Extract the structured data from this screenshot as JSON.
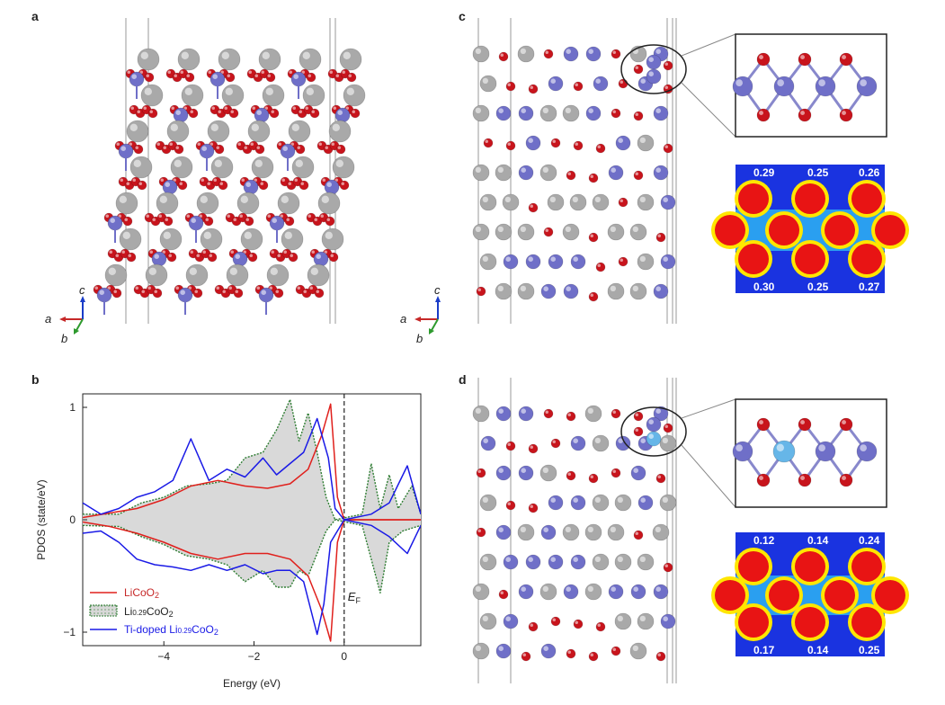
{
  "panels": {
    "a": "a",
    "b": "b",
    "c": "c",
    "d": "d"
  },
  "axes_labels": {
    "a": "a",
    "b": "b",
    "c": "c"
  },
  "colors": {
    "co_atom": "#6f6fc8",
    "o_atom": "#c8141c",
    "li_atom": "#a9a9a9",
    "ti_atom": "#66b6e8",
    "licoo2": "#e0201c",
    "li029": "#2e7d32",
    "tidoped": "#1a1ae6"
  },
  "chart_data": {
    "type": "line",
    "xlabel": "Energy (eV)",
    "ylabel": "PDOS (state/eV)",
    "xlim": [
      -5.8,
      1.7
    ],
    "ylim": [
      -1.12,
      1.12
    ],
    "xticks": [
      -4,
      -2,
      0
    ],
    "yticks": [
      -1,
      0,
      1
    ],
    "fermi_label": "E",
    "fermi_sub": "F",
    "series": [
      {
        "name": "LiCoO",
        "sub": "2",
        "style": "red-line",
        "up": [
          [
            -5.8,
            0.02
          ],
          [
            -5.2,
            0.06
          ],
          [
            -4.6,
            0.1
          ],
          [
            -4.0,
            0.18
          ],
          [
            -3.4,
            0.3
          ],
          [
            -2.8,
            0.35
          ],
          [
            -2.2,
            0.3
          ],
          [
            -1.7,
            0.28
          ],
          [
            -1.2,
            0.32
          ],
          [
            -0.8,
            0.45
          ],
          [
            -0.5,
            0.75
          ],
          [
            -0.3,
            1.03
          ],
          [
            -0.15,
            0.2
          ],
          [
            0,
            0
          ],
          [
            1.7,
            0
          ]
        ],
        "down": [
          [
            -5.8,
            -0.02
          ],
          [
            -5.2,
            -0.06
          ],
          [
            -4.6,
            -0.12
          ],
          [
            -4.0,
            -0.2
          ],
          [
            -3.4,
            -0.3
          ],
          [
            -2.8,
            -0.35
          ],
          [
            -2.2,
            -0.3
          ],
          [
            -1.7,
            -0.3
          ],
          [
            -1.2,
            -0.35
          ],
          [
            -0.8,
            -0.5
          ],
          [
            -0.5,
            -0.8
          ],
          [
            -0.3,
            -1.08
          ],
          [
            -0.15,
            -0.2
          ],
          [
            0,
            0
          ],
          [
            1.7,
            0
          ]
        ]
      },
      {
        "name": "Li",
        "mid": "0.29",
        "tail": "CoO",
        "sub": "2",
        "style": "green-dotted-filled",
        "up": [
          [
            -5.8,
            0.05
          ],
          [
            -5.0,
            0.05
          ],
          [
            -4.5,
            0.15
          ],
          [
            -4.0,
            0.2
          ],
          [
            -3.5,
            0.3
          ],
          [
            -3.0,
            0.32
          ],
          [
            -2.6,
            0.35
          ],
          [
            -2.2,
            0.55
          ],
          [
            -1.8,
            0.6
          ],
          [
            -1.5,
            0.8
          ],
          [
            -1.2,
            1.07
          ],
          [
            -1.0,
            0.7
          ],
          [
            -0.8,
            0.95
          ],
          [
            -0.6,
            0.6
          ],
          [
            -0.4,
            0.2
          ],
          [
            -0.2,
            0
          ],
          [
            0.4,
            0.05
          ],
          [
            0.6,
            0.5
          ],
          [
            0.8,
            0.1
          ],
          [
            1.0,
            0.4
          ],
          [
            1.2,
            0.1
          ],
          [
            1.5,
            0.3
          ],
          [
            1.7,
            0.05
          ]
        ],
        "down": [
          [
            -5.8,
            -0.05
          ],
          [
            -5.0,
            -0.06
          ],
          [
            -4.5,
            -0.15
          ],
          [
            -4.0,
            -0.22
          ],
          [
            -3.5,
            -0.32
          ],
          [
            -3.0,
            -0.35
          ],
          [
            -2.6,
            -0.4
          ],
          [
            -2.2,
            -0.55
          ],
          [
            -1.8,
            -0.45
          ],
          [
            -1.5,
            -0.6
          ],
          [
            -1.2,
            -0.6
          ],
          [
            -1.0,
            -0.45
          ],
          [
            -0.8,
            -0.5
          ],
          [
            -0.6,
            -0.3
          ],
          [
            -0.4,
            -0.1
          ],
          [
            -0.2,
            0
          ],
          [
            0.4,
            -0.05
          ],
          [
            0.6,
            -0.35
          ],
          [
            0.8,
            -0.65
          ],
          [
            1.0,
            -0.2
          ],
          [
            1.3,
            -0.1
          ],
          [
            1.7,
            -0.05
          ]
        ]
      },
      {
        "name": "Ti-doped Li",
        "mid": "0.29",
        "tail": "CoO",
        "sub": "2",
        "style": "blue-line",
        "up": [
          [
            -5.8,
            0.15
          ],
          [
            -5.4,
            0.05
          ],
          [
            -5.0,
            0.1
          ],
          [
            -4.6,
            0.2
          ],
          [
            -4.2,
            0.25
          ],
          [
            -3.8,
            0.35
          ],
          [
            -3.4,
            0.72
          ],
          [
            -3.0,
            0.35
          ],
          [
            -2.6,
            0.45
          ],
          [
            -2.2,
            0.38
          ],
          [
            -1.8,
            0.55
          ],
          [
            -1.5,
            0.4
          ],
          [
            -1.2,
            0.5
          ],
          [
            -0.9,
            0.6
          ],
          [
            -0.6,
            0.9
          ],
          [
            -0.35,
            0.55
          ],
          [
            -0.2,
            0.1
          ],
          [
            0,
            0
          ],
          [
            0.6,
            0.05
          ],
          [
            1.0,
            0.15
          ],
          [
            1.4,
            0.48
          ],
          [
            1.7,
            0.05
          ]
        ],
        "down": [
          [
            -5.8,
            -0.12
          ],
          [
            -5.4,
            -0.1
          ],
          [
            -5.0,
            -0.2
          ],
          [
            -4.6,
            -0.35
          ],
          [
            -4.2,
            -0.4
          ],
          [
            -3.8,
            -0.42
          ],
          [
            -3.4,
            -0.45
          ],
          [
            -3.0,
            -0.4
          ],
          [
            -2.6,
            -0.45
          ],
          [
            -2.2,
            -0.4
          ],
          [
            -1.8,
            -0.48
          ],
          [
            -1.5,
            -0.45
          ],
          [
            -1.2,
            -0.45
          ],
          [
            -0.9,
            -0.55
          ],
          [
            -0.6,
            -1.02
          ],
          [
            -0.45,
            -0.75
          ],
          [
            -0.3,
            -0.2
          ],
          [
            0,
            0
          ],
          [
            0.6,
            -0.05
          ],
          [
            1.0,
            -0.15
          ],
          [
            1.4,
            -0.3
          ],
          [
            1.7,
            -0.05
          ]
        ]
      }
    ]
  },
  "density_maps": {
    "c": {
      "top": [
        "0.29",
        "0.25",
        "0.26"
      ],
      "bottom": [
        "0.30",
        "0.25",
        "0.27"
      ]
    },
    "d": {
      "top": [
        "0.12",
        "0.14",
        "0.24"
      ],
      "bottom": [
        "0.17",
        "0.14",
        "0.25"
      ]
    }
  }
}
